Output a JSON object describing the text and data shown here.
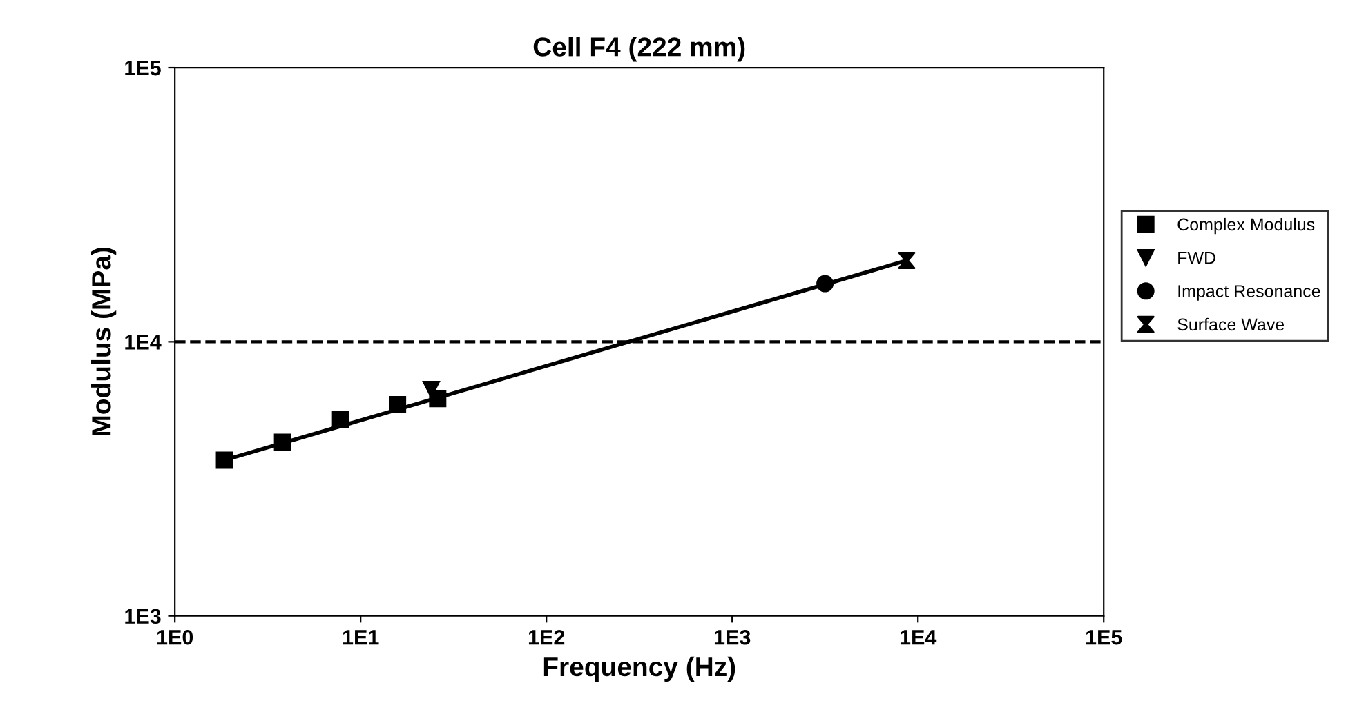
{
  "chart_data": {
    "type": "scatter",
    "title": "Cell F4 (222 mm)",
    "xlabel": "Frequency (Hz)",
    "ylabel": "Modulus (MPa)",
    "log": "xy",
    "grid": false,
    "legend": "right",
    "xlim": [
      1,
      100000
    ],
    "ylim": [
      1000,
      100000
    ],
    "xticks": [
      {
        "value": 1,
        "label": "1E0"
      },
      {
        "value": 10,
        "label": "1E1"
      },
      {
        "value": 100,
        "label": "1E2"
      },
      {
        "value": 1000,
        "label": "1E3"
      },
      {
        "value": 10000,
        "label": "1E4"
      },
      {
        "value": 100000,
        "label": "1E5"
      }
    ],
    "yticks": [
      {
        "value": 1000,
        "label": "1E3"
      },
      {
        "value": 10000,
        "label": "1E4"
      },
      {
        "value": 100000,
        "label": "1E5"
      }
    ],
    "series": [
      {
        "name": "Complex Modulus",
        "color": "#000000",
        "marker": "square",
        "x": [
          1.85,
          3.8,
          7.8,
          15.8,
          26
        ],
        "values": [
          3700,
          4300,
          5200,
          5900,
          6200
        ]
      },
      {
        "name": "FWD",
        "color": "#000000",
        "marker": "triangle",
        "x": [
          24
        ],
        "values": [
          6700
        ]
      },
      {
        "name": "Impact Resonance",
        "color": "#000000",
        "marker": "circle",
        "x": [
          3160
        ],
        "values": [
          16300
        ]
      },
      {
        "name": "Surface Wave",
        "color": "#000000",
        "x": [
          8700
        ],
        "values": [
          19800
        ]
      },
      {
        "type": "line",
        "color": "#000000",
        "marker": "none",
        "line_style": "solid",
        "x": [
          1.85,
          8700
        ],
        "values": [
          3700,
          19800
        ]
      }
    ],
    "ref_lines": [
      {
        "axis": "y",
        "value": 10000,
        "color": "#000000",
        "line_style": "dashed"
      }
    ]
  }
}
